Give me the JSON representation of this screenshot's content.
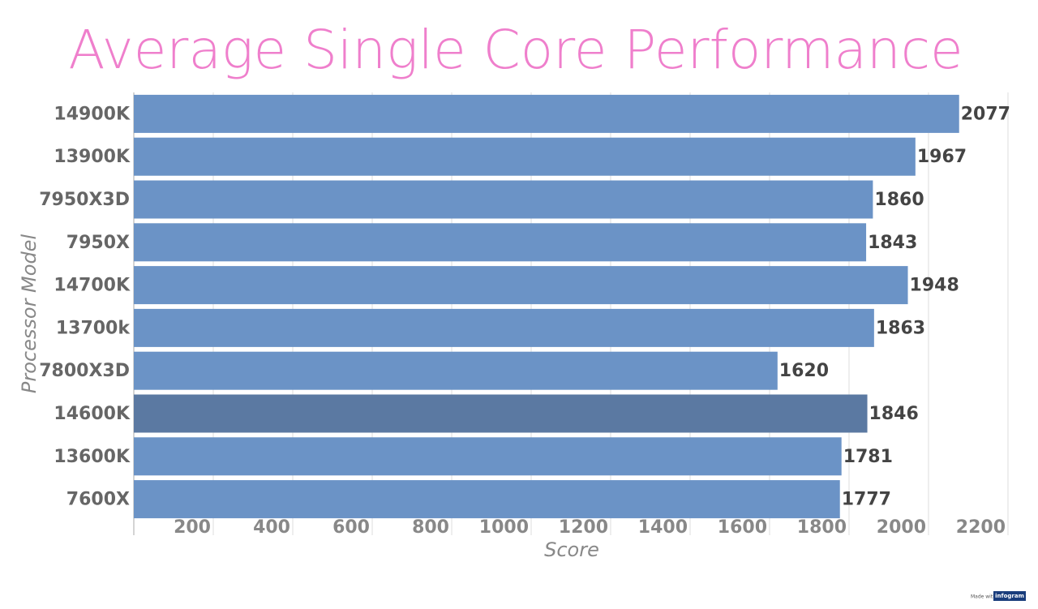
{
  "chart_data": {
    "type": "barh",
    "title": "Average Single Core Performance",
    "x_label": "Score",
    "y_label": "Processor Model",
    "categories": [
      "14900K",
      "13900K",
      "7950X3D",
      "7950X",
      "14700K",
      "13700k",
      "7800X3D",
      "14600K",
      "13600K",
      "7600X"
    ],
    "values": [
      2077,
      1967,
      1860,
      1843,
      1948,
      1863,
      1620,
      1846,
      1781,
      1777
    ],
    "colors": [
      "#6b93c6",
      "#6b93c6",
      "#6b93c6",
      "#6b93c6",
      "#6b93c6",
      "#6b93c6",
      "#6b93c6",
      "#5b79a2",
      "#6b93c6",
      "#6b93c6"
    ],
    "xlim": [
      0,
      2200
    ],
    "xticks": [
      200,
      400,
      600,
      800,
      1000,
      1200,
      1400,
      1600,
      1800,
      2000,
      2200
    ],
    "grid": true,
    "credit": "Made with",
    "credit_brand": "infogram"
  }
}
